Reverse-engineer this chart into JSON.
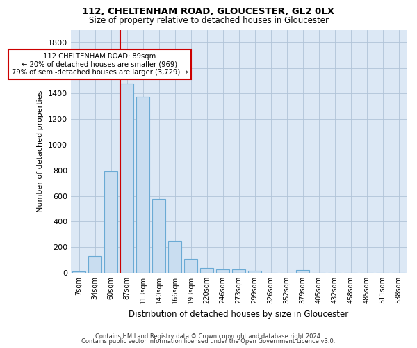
{
  "title1": "112, CHELTENHAM ROAD, GLOUCESTER, GL2 0LX",
  "title2": "Size of property relative to detached houses in Gloucester",
  "xlabel": "Distribution of detached houses by size in Gloucester",
  "ylabel": "Number of detached properties",
  "bar_color": "#c9ddf0",
  "bar_edge_color": "#6aaad4",
  "background_color": "#ffffff",
  "plot_bg_color": "#dce8f5",
  "grid_color": "#b0c4d8",
  "annotation_line_color": "#cc0000",
  "annotation_box_edge_color": "#cc0000",
  "categories": [
    "7sqm",
    "34sqm",
    "60sqm",
    "87sqm",
    "113sqm",
    "140sqm",
    "166sqm",
    "193sqm",
    "220sqm",
    "246sqm",
    "273sqm",
    "299sqm",
    "326sqm",
    "352sqm",
    "379sqm",
    "405sqm",
    "432sqm",
    "458sqm",
    "485sqm",
    "511sqm",
    "538sqm"
  ],
  "values": [
    10,
    130,
    795,
    1480,
    1375,
    575,
    250,
    110,
    35,
    28,
    28,
    18,
    0,
    0,
    20,
    0,
    0,
    0,
    0,
    0,
    0
  ],
  "ylim": [
    0,
    1900
  ],
  "yticks": [
    0,
    200,
    400,
    600,
    800,
    1000,
    1200,
    1400,
    1600,
    1800
  ],
  "property_bin_index": 3,
  "annotation_text_line1": "112 CHELTENHAM ROAD: 89sqm",
  "annotation_text_line2": "← 20% of detached houses are smaller (969)",
  "annotation_text_line3": "79% of semi-detached houses are larger (3,729) →",
  "footnote1": "Contains HM Land Registry data © Crown copyright and database right 2024.",
  "footnote2": "Contains public sector information licensed under the Open Government Licence v3.0."
}
